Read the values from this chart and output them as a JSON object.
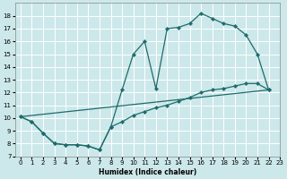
{
  "xlabel": "Humidex (Indice chaleur)",
  "bg_color": "#cce8ea",
  "grid_color": "#ffffff",
  "line_color": "#1e6b6b",
  "xlim": [
    -0.5,
    23
  ],
  "ylim": [
    7,
    19
  ],
  "xticks": [
    0,
    1,
    2,
    3,
    4,
    5,
    6,
    7,
    8,
    9,
    10,
    11,
    12,
    13,
    14,
    15,
    16,
    17,
    18,
    19,
    20,
    21,
    22,
    23
  ],
  "yticks": [
    7,
    8,
    9,
    10,
    11,
    12,
    13,
    14,
    15,
    16,
    17,
    18
  ],
  "line1_x": [
    0,
    1,
    2,
    3,
    4,
    5,
    6,
    7,
    8,
    9,
    10,
    11,
    12,
    13,
    14,
    15,
    16,
    17,
    18,
    19,
    20,
    21,
    22
  ],
  "line1_y": [
    10.1,
    9.7,
    8.8,
    8.0,
    7.9,
    7.9,
    7.8,
    7.5,
    9.3,
    12.2,
    15.0,
    16.0,
    12.3,
    17.0,
    17.1,
    17.4,
    18.2,
    17.8,
    17.4,
    17.2,
    16.5,
    15.0,
    12.2
  ],
  "line2_x": [
    0,
    22
  ],
  "line2_y": [
    10.1,
    12.2
  ],
  "line3_x": [
    0,
    1,
    2,
    3,
    4,
    5,
    6,
    7,
    8,
    9,
    10,
    11,
    12,
    13,
    14,
    15,
    16,
    17,
    18,
    19,
    20,
    21,
    22
  ],
  "line3_y": [
    10.1,
    9.7,
    8.8,
    8.0,
    7.9,
    7.9,
    7.8,
    7.5,
    9.3,
    9.7,
    10.2,
    10.5,
    10.8,
    11.0,
    11.3,
    11.6,
    12.0,
    12.2,
    12.3,
    12.5,
    12.7,
    12.7,
    12.2
  ],
  "marker": "D",
  "markersize": 2.2,
  "linewidth": 0.9,
  "xlabel_fontsize": 5.5,
  "tick_fontsize": 5.0
}
